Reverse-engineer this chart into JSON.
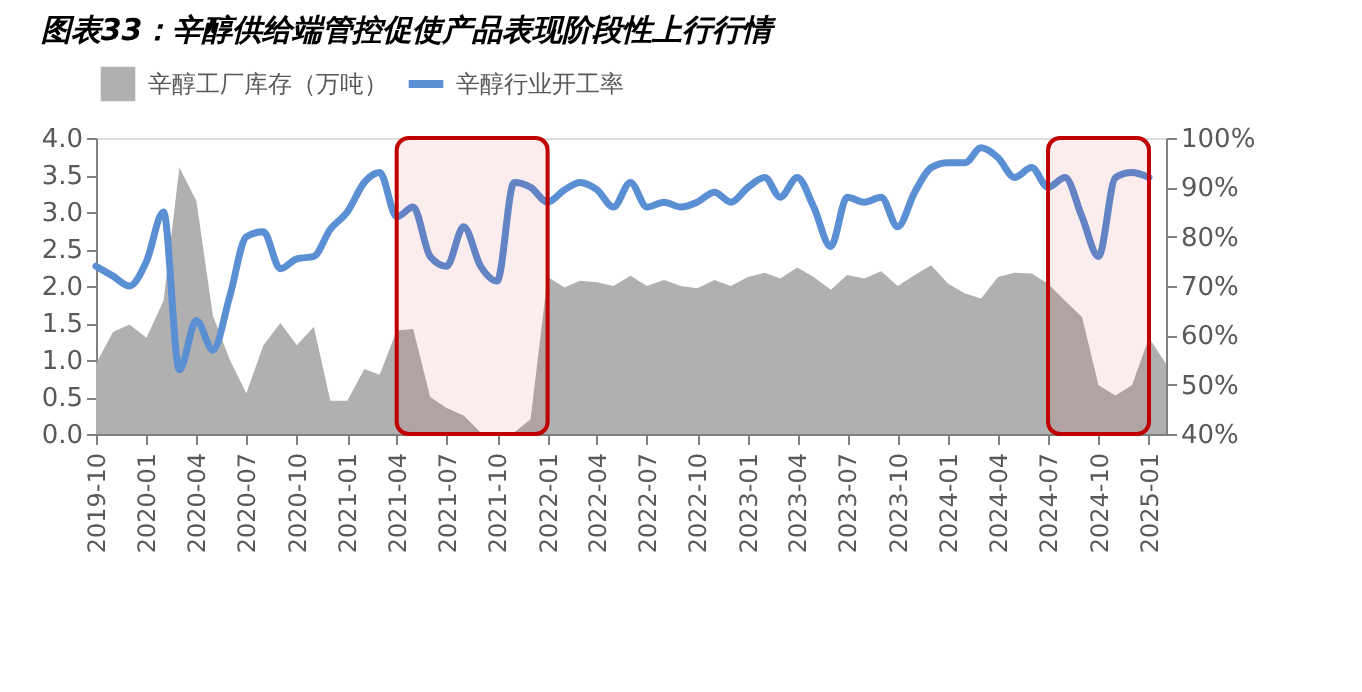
{
  "chart_data": {
    "type": "area",
    "title": "图表33：辛醇供给端管控促使产品表现阶段性上行行情",
    "x": [
      "2019-10",
      "2019-11",
      "2019-12",
      "2020-01",
      "2020-02",
      "2020-03",
      "2020-04",
      "2020-05",
      "2020-06",
      "2020-07",
      "2020-08",
      "2020-09",
      "2020-10",
      "2020-11",
      "2020-12",
      "2021-01",
      "2021-02",
      "2021-03",
      "2021-04",
      "2021-05",
      "2021-06",
      "2021-07",
      "2021-08",
      "2021-09",
      "2021-10",
      "2021-11",
      "2021-12",
      "2022-01",
      "2022-02",
      "2022-03",
      "2022-04",
      "2022-05",
      "2022-06",
      "2022-07",
      "2022-08",
      "2022-09",
      "2022-10",
      "2022-11",
      "2022-12",
      "2023-01",
      "2023-02",
      "2023-03",
      "2023-04",
      "2023-05",
      "2023-06",
      "2023-07",
      "2023-08",
      "2023-09",
      "2023-10",
      "2023-11",
      "2023-12",
      "2024-01",
      "2024-02",
      "2024-03",
      "2024-04",
      "2024-05",
      "2024-06",
      "2024-07",
      "2024-08",
      "2024-09",
      "2024-10",
      "2024-11",
      "2024-12",
      "2025-01",
      "2025-02"
    ],
    "series": [
      {
        "name": "辛醇工厂库存（万吨）",
        "type": "area",
        "color": "#b0b0b0",
        "values": [
          0.95,
          1.38,
          1.48,
          1.3,
          1.8,
          3.6,
          3.15,
          1.6,
          1.0,
          0.55,
          1.2,
          1.5,
          1.2,
          1.45,
          0.45,
          0.45,
          0.88,
          0.8,
          1.4,
          1.42,
          0.5,
          0.35,
          0.25,
          0.02,
          0.02,
          0.02,
          0.2,
          2.12,
          1.98,
          2.07,
          2.05,
          2.0,
          2.14,
          2.0,
          2.08,
          2.0,
          1.97,
          2.08,
          2.0,
          2.12,
          2.18,
          2.1,
          2.25,
          2.12,
          1.95,
          2.15,
          2.1,
          2.2,
          2.0,
          2.15,
          2.28,
          2.03,
          1.9,
          1.83,
          2.12,
          2.18,
          2.17,
          2.03,
          1.8,
          1.58,
          0.66,
          0.52,
          0.66,
          1.3,
          0.95
        ]
      },
      {
        "name": "辛醇行业开工率",
        "type": "line",
        "axis": "y2",
        "color": "#5b8fd4",
        "values": [
          74,
          72,
          70,
          75,
          85,
          53,
          63,
          57,
          68,
          80,
          81,
          73.5,
          75.5,
          76,
          81.5,
          85,
          91,
          93,
          84,
          86,
          76,
          74,
          82,
          74,
          71,
          91,
          90,
          87,
          89.5,
          91,
          89.5,
          86,
          91,
          86,
          87,
          86,
          87,
          89,
          87,
          90,
          92,
          88,
          92,
          86,
          78,
          88,
          87,
          88,
          82,
          89,
          94,
          95,
          95,
          98,
          96,
          92,
          94,
          90,
          92,
          84,
          76,
          92,
          93,
          92,
          null
        ]
      }
    ],
    "xlim": [
      "2019-10",
      "2025-02"
    ],
    "xticks": [
      "2019-10",
      "2020-01",
      "2020-04",
      "2020-07",
      "2020-10",
      "2021-01",
      "2021-04",
      "2021-07",
      "2021-10",
      "2022-01",
      "2022-04",
      "2022-07",
      "2022-10",
      "2023-01",
      "2023-04",
      "2023-07",
      "2023-10",
      "2024-01",
      "2024-04",
      "2024-07",
      "2024-10",
      "2025-01"
    ],
    "ylim": [
      0,
      4
    ],
    "yticks": [
      {
        "value": 0,
        "label": "0.0"
      },
      {
        "value": 0.5,
        "label": "0.5"
      },
      {
        "value": 1,
        "label": "1.0"
      },
      {
        "value": 1.5,
        "label": "1.5"
      },
      {
        "value": 2,
        "label": "2.0"
      },
      {
        "value": 2.5,
        "label": "2.5"
      },
      {
        "value": 3,
        "label": "3.0"
      },
      {
        "value": 3.5,
        "label": "3.5"
      },
      {
        "value": 4,
        "label": "4.0"
      }
    ],
    "y2lim": [
      40,
      100
    ],
    "y2ticks": [
      {
        "value": 40,
        "label": "40%"
      },
      {
        "value": 50,
        "label": "50%"
      },
      {
        "value": 60,
        "label": "60%"
      },
      {
        "value": 70,
        "label": "70%"
      },
      {
        "value": 80,
        "label": "80%"
      },
      {
        "value": 90,
        "label": "90%"
      },
      {
        "value": 100,
        "label": "100%"
      }
    ],
    "bands": [
      {
        "axis": "x",
        "from": "2021-04",
        "to": "2022-01",
        "color": "#c00000"
      },
      {
        "axis": "x",
        "from": "2024-07",
        "to": "2025-01",
        "color": "#c00000"
      }
    ],
    "grid": false,
    "legend": "top"
  }
}
